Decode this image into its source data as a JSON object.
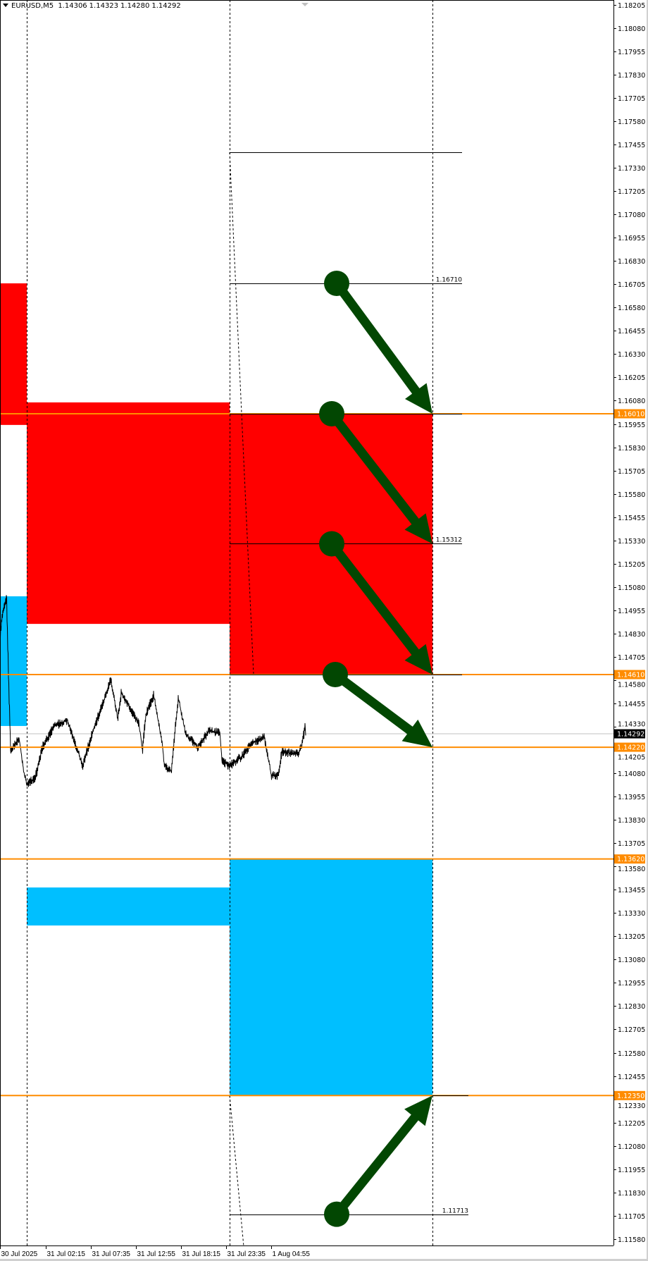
{
  "header": {
    "symbol": "EURUSD,M5",
    "ohlc": [
      "1.14306",
      "1.14323",
      "1.14280",
      "1.14292"
    ]
  },
  "colors": {
    "supply_zone": "#ff0000",
    "demand_zone": "#00bfff",
    "level_line": "#ff8c00",
    "arrow": "#024702",
    "price_line": "#000000",
    "bid_line": "#c0c0c0"
  },
  "chart_data": {
    "type": "line",
    "title": "",
    "symbol": "EURUSD",
    "timeframe": "M5",
    "ylim": [
      1.1155,
      1.1827
    ],
    "grid": false,
    "x_ticks": [
      "30 Jul 2025",
      "31 Jul 02:15",
      "31 Jul 07:35",
      "31 Jul 12:55",
      "31 Jul 18:15",
      "31 Jul 23:35",
      "1 Aug 04:55"
    ],
    "x_tick_times": [
      "2025-07-30 20:50",
      "2025-07-31 02:15",
      "2025-07-31 07:35",
      "2025-07-31 12:55",
      "2025-07-31 18:15",
      "2025-07-31 23:35",
      "2025-08-01 04:55"
    ],
    "y_ticks": [
      "1.18205",
      "1.18080",
      "1.17955",
      "1.17830",
      "1.17705",
      "1.17580",
      "1.17455",
      "1.17330",
      "1.17205",
      "1.17080",
      "1.16955",
      "1.16830",
      "1.16705",
      "1.16580",
      "1.16455",
      "1.16330",
      "1.16205",
      "1.16080",
      "1.15955",
      "1.15830",
      "1.15705",
      "1.15580",
      "1.15455",
      "1.15330",
      "1.15205",
      "1.15080",
      "1.14955",
      "1.14830",
      "1.14705",
      "1.14580",
      "1.14455",
      "1.14330",
      "1.14205",
      "1.14080",
      "1.13955",
      "1.13830",
      "1.13705",
      "1.13580",
      "1.13455",
      "1.13330",
      "1.13205",
      "1.13080",
      "1.12955",
      "1.12830",
      "1.12705",
      "1.12580",
      "1.12455",
      "1.12330",
      "1.12205",
      "1.12080",
      "1.11955",
      "1.11830",
      "1.11705",
      "1.11580"
    ],
    "series": [
      {
        "points": [
          [
            "2025-07-30 20:50",
            1.14826
          ],
          [
            "2025-07-30 21:05",
            1.14927
          ],
          [
            "2025-07-30 21:35",
            1.15027
          ],
          [
            "2025-07-30 21:50",
            1.14573
          ],
          [
            "2025-07-30 22:05",
            1.14195
          ],
          [
            "2025-07-30 23:05",
            1.14271
          ],
          [
            "2025-07-30 23:35",
            1.14094
          ],
          [
            "2025-07-31 00:00",
            1.14019
          ],
          [
            "2025-07-31 01:00",
            1.14056
          ],
          [
            "2025-07-31 01:50",
            1.1422
          ],
          [
            "2025-07-31 03:15",
            1.14334
          ],
          [
            "2025-07-31 04:45",
            1.14365
          ],
          [
            "2025-07-31 05:45",
            1.14233
          ],
          [
            "2025-07-31 06:35",
            1.1412
          ],
          [
            "2025-07-31 07:55",
            1.14321
          ],
          [
            "2025-07-31 09:20",
            1.14498
          ],
          [
            "2025-07-31 09:55",
            1.14586
          ],
          [
            "2025-07-31 10:45",
            1.14372
          ],
          [
            "2025-07-31 11:10",
            1.1451
          ],
          [
            "2025-07-31 12:25",
            1.1441
          ],
          [
            "2025-07-31 13:15",
            1.14347
          ],
          [
            "2025-07-31 13:40",
            1.14208
          ],
          [
            "2025-07-31 14:05",
            1.14397
          ],
          [
            "2025-07-31 15:00",
            1.14498
          ],
          [
            "2025-07-31 16:00",
            1.14246
          ],
          [
            "2025-07-31 16:15",
            1.1412
          ],
          [
            "2025-07-31 17:05",
            1.14094
          ],
          [
            "2025-07-31 17:30",
            1.14296
          ],
          [
            "2025-07-31 17:55",
            1.14485
          ],
          [
            "2025-07-31 18:45",
            1.14296
          ],
          [
            "2025-07-31 20:10",
            1.1422
          ],
          [
            "2025-07-31 21:35",
            1.14309
          ],
          [
            "2025-07-31 22:50",
            1.14296
          ],
          [
            "2025-07-31 23:05",
            1.14145
          ],
          [
            "2025-07-31 23:55",
            1.1412
          ],
          [
            "2025-08-01 01:25",
            1.1417
          ],
          [
            "2025-08-01 02:40",
            1.14246
          ],
          [
            "2025-08-01 04:05",
            1.14271
          ],
          [
            "2025-08-01 04:55",
            1.14069
          ],
          [
            "2025-08-01 05:45",
            1.14069
          ],
          [
            "2025-08-01 06:10",
            1.14195
          ],
          [
            "2025-08-01 08:05",
            1.14183
          ],
          [
            "2025-08-01 08:30",
            1.1422
          ],
          [
            "2025-08-01 08:55",
            1.14334
          ],
          [
            "2025-08-01 09:00",
            1.14283
          ]
        ]
      }
    ],
    "zones": [
      {
        "kind": "supply",
        "start": "2025-07-30 20:50",
        "end": "2025-07-31 00:00",
        "top": 1.1671,
        "bottom": 1.1595
      },
      {
        "kind": "supply",
        "start": "2025-07-31 00:00",
        "end": "2025-08-01 00:00",
        "top": 1.16071,
        "bottom": 1.14882
      },
      {
        "kind": "supply",
        "start": "2025-08-01 00:00",
        "end": "2025-08-02 00:00",
        "top": 1.1601,
        "bottom": 1.1461
      },
      {
        "kind": "demand",
        "start": "2025-07-30 20:50",
        "end": "2025-07-31 00:00",
        "top": 1.1503,
        "bottom": 1.14334
      },
      {
        "kind": "demand",
        "start": "2025-07-31 00:00",
        "end": "2025-08-01 00:00",
        "top": 1.13467,
        "bottom": 1.13263
      },
      {
        "kind": "demand",
        "start": "2025-08-01 00:00",
        "end": "2025-08-02 00:00",
        "top": 1.1362,
        "bottom": 1.1235
      }
    ],
    "period_separators": [
      "2025-07-31 00:00",
      "2025-08-01 00:00",
      "2025-08-02 00:00"
    ],
    "horizontal_levels": [
      {
        "price": 1.1601,
        "label": "1.16010"
      },
      {
        "price": 1.1461,
        "label": "1.14610"
      },
      {
        "price": 1.1422,
        "label": "1.14220"
      },
      {
        "price": 1.1362,
        "label": "1.13620"
      },
      {
        "price": 1.1235,
        "label": "1.12350"
      }
    ],
    "bid": {
      "price": 1.14292,
      "label": "1.14292"
    },
    "segments": [
      {
        "price": 1.17414,
        "start": "2025-08-01 00:00",
        "end": "2025-08-02 03:30",
        "label": ""
      },
      {
        "price": 1.1671,
        "start": "2025-08-01 00:00",
        "end": "2025-08-02 03:30",
        "label": "1.16710"
      },
      {
        "price": 1.1601,
        "start": "2025-08-01 00:00",
        "end": "2025-08-02 03:30",
        "label": ""
      },
      {
        "price": 1.15312,
        "start": "2025-08-01 00:00",
        "end": "2025-08-02 03:30",
        "label": "1.15312"
      },
      {
        "price": 1.1461,
        "start": "2025-08-01 00:00",
        "end": "2025-08-02 03:30",
        "label": ""
      },
      {
        "price": 1.1235,
        "start": "2025-08-02 00:00",
        "end": "2025-08-02 04:15",
        "label": ""
      },
      {
        "price": 1.11713,
        "start": "2025-08-01 00:00",
        "end": "2025-08-02 04:15",
        "label": "1.11713"
      }
    ],
    "trend_lines": [
      {
        "from": [
          "2025-08-01 00:00",
          1.17414
        ],
        "to": [
          "2025-08-01 02:50",
          1.1461
        ]
      },
      {
        "from": [
          "2025-08-01 00:00",
          1.1235
        ],
        "to": [
          "2025-08-01 01:45",
          1.115
        ]
      }
    ],
    "arrows": [
      {
        "from": [
          "2025-08-01 12:40",
          1.1671
        ],
        "to": [
          "2025-08-02 00:00",
          1.1601
        ]
      },
      {
        "from": [
          "2025-08-01 12:05",
          1.1601
        ],
        "to": [
          "2025-08-02 00:00",
          1.15312
        ]
      },
      {
        "from": [
          "2025-08-01 12:05",
          1.15312
        ],
        "to": [
          "2025-08-02 00:00",
          1.1461
        ]
      },
      {
        "from": [
          "2025-08-01 12:30",
          1.1461
        ],
        "to": [
          "2025-08-02 00:00",
          1.1422
        ]
      },
      {
        "from": [
          "2025-08-01 12:40",
          1.11713
        ],
        "to": [
          "2025-08-02 00:00",
          1.1235
        ]
      }
    ]
  }
}
